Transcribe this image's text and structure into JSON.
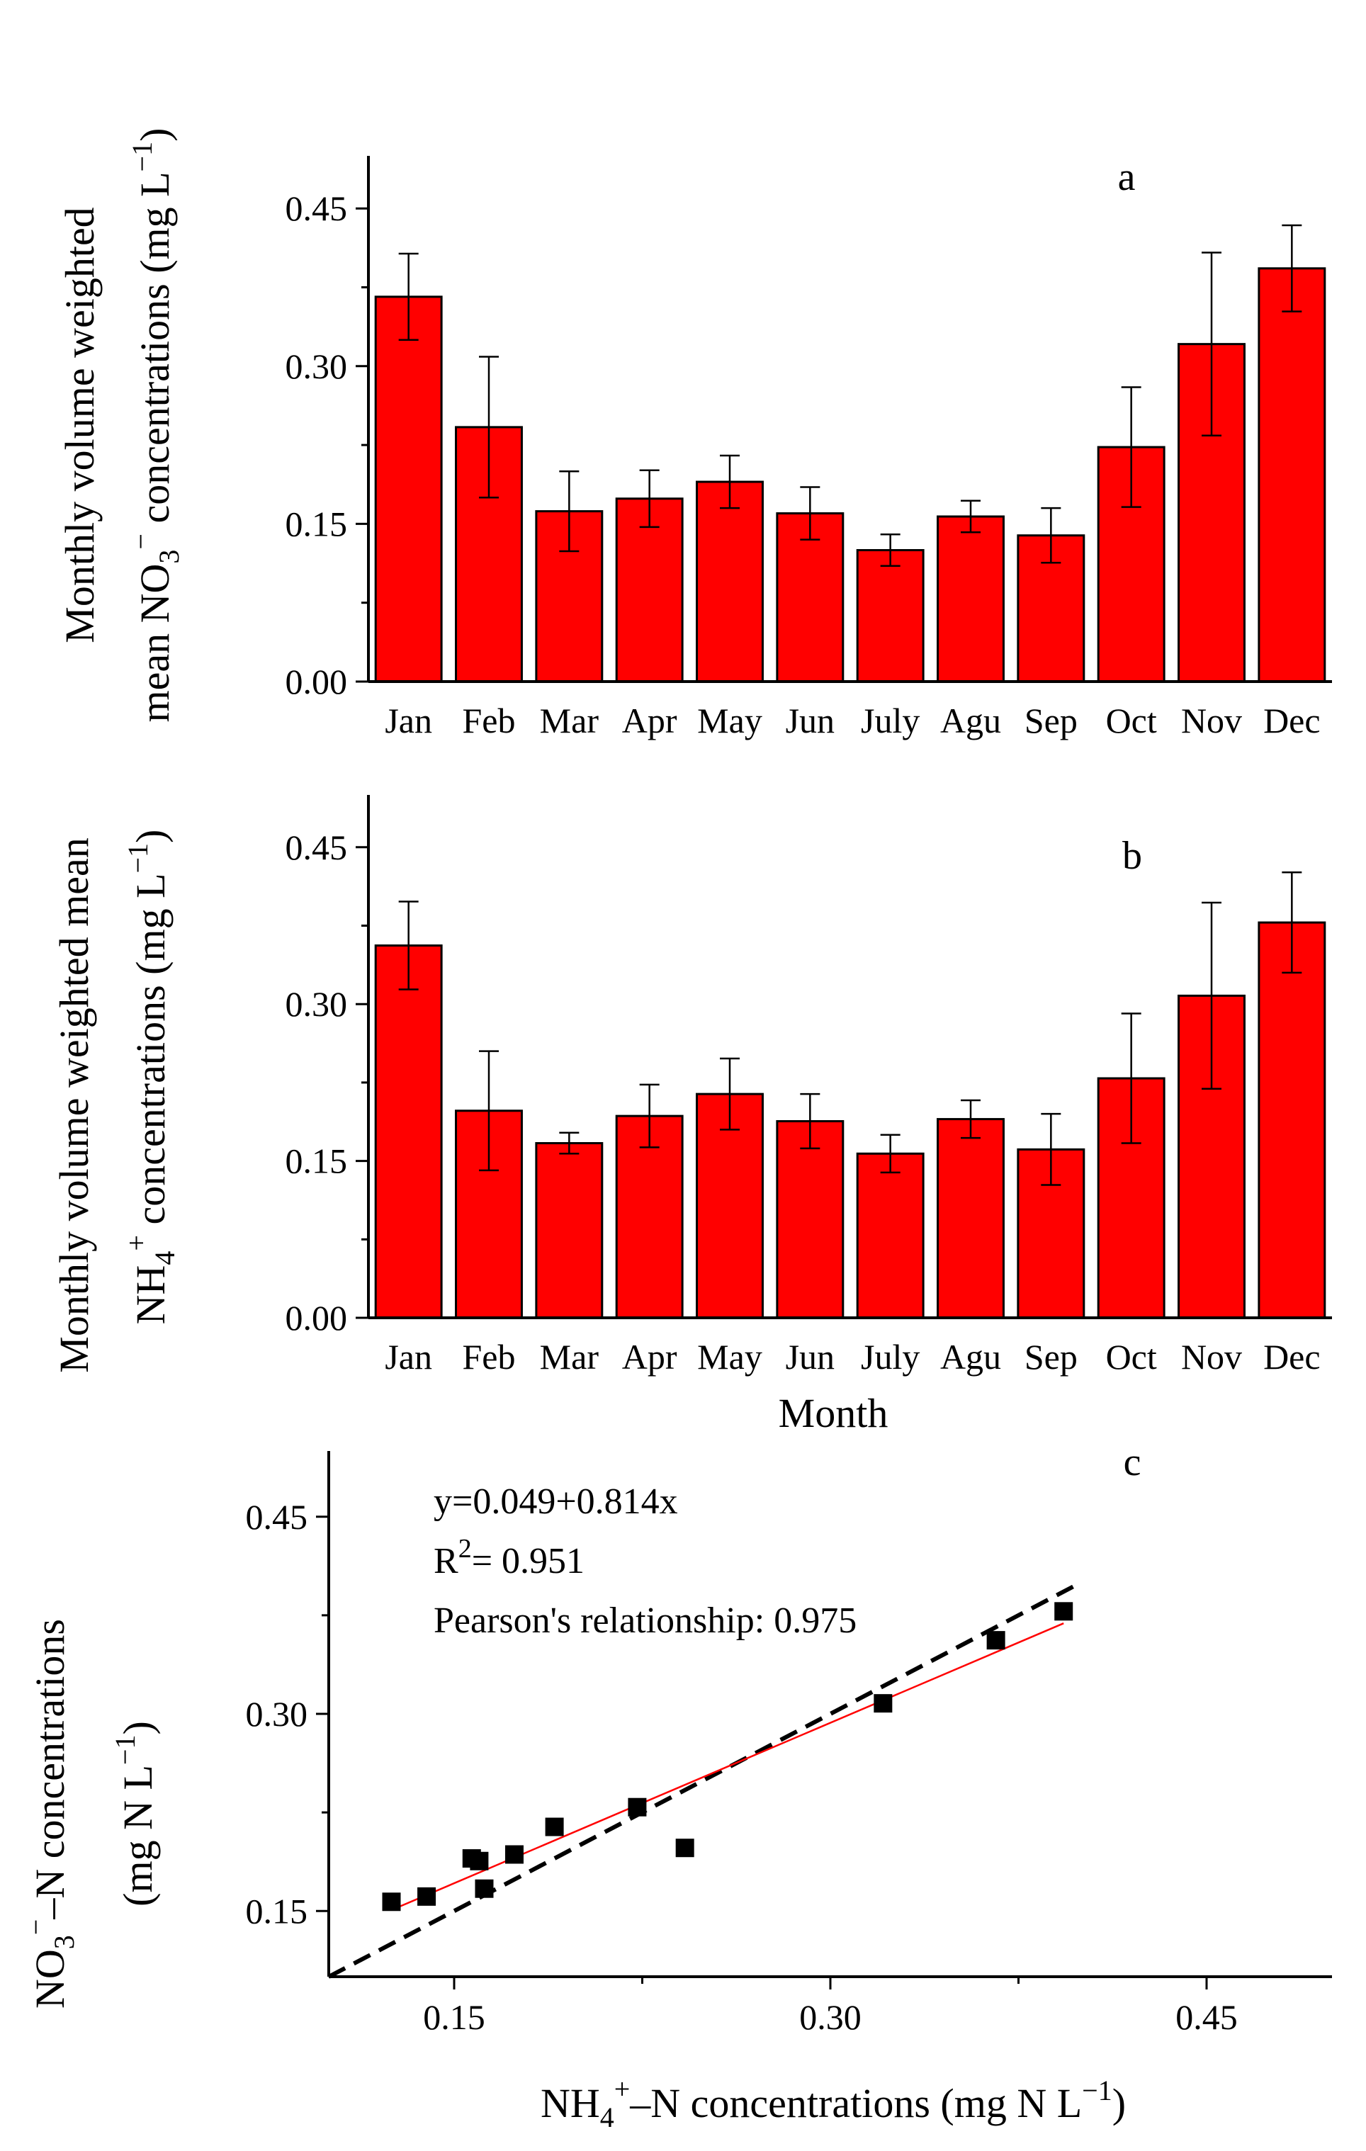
{
  "chart_data": [
    {
      "type": "bar",
      "panel_label": "a",
      "categories": [
        "Jan",
        "Feb",
        "Mar",
        "Apr",
        "May",
        "Jun",
        "July",
        "Agu",
        "Sep",
        "Oct",
        "Nov",
        "Dec"
      ],
      "values": [
        0.366,
        0.242,
        0.162,
        0.174,
        0.19,
        0.16,
        0.125,
        0.157,
        0.139,
        0.223,
        0.321,
        0.393
      ],
      "errors": [
        0.041,
        0.067,
        0.038,
        0.027,
        0.025,
        0.025,
        0.015,
        0.015,
        0.026,
        0.057,
        0.087,
        0.041
      ],
      "ylabel_line1": "Monthly volume weighted",
      "ylabel_line2_pre": "mean NO",
      "ylabel_line2_sub": "3",
      "ylabel_line2_sup": "−",
      "ylabel_line2_post": " concentrations (mg L",
      "ylabel_unit_sup": "−1",
      "ylabel_unit_close": ")",
      "yticks": [
        "0.00",
        "0.15",
        "0.30",
        "0.45"
      ],
      "ylim": [
        0,
        0.5
      ],
      "bar_color": "#ff0000"
    },
    {
      "type": "bar",
      "panel_label": "b",
      "categories": [
        "Jan",
        "Feb",
        "Mar",
        "Apr",
        "May",
        "Jun",
        "July",
        "Agu",
        "Sep",
        "Oct",
        "Nov",
        "Dec"
      ],
      "values": [
        0.356,
        0.198,
        0.167,
        0.193,
        0.214,
        0.188,
        0.157,
        0.19,
        0.161,
        0.229,
        0.308,
        0.378
      ],
      "errors": [
        0.042,
        0.057,
        0.01,
        0.03,
        0.034,
        0.026,
        0.018,
        0.018,
        0.034,
        0.062,
        0.089,
        0.048
      ],
      "xlabel": "Month",
      "ylabel_line1": "Monthly volume weighted mean",
      "ylabel_line2_pre": "NH",
      "ylabel_line2_sub": "4",
      "ylabel_line2_sup": "+",
      "ylabel_line2_post": " concentrations (mg L",
      "ylabel_unit_sup": "−1",
      "ylabel_unit_close": ")",
      "yticks": [
        "0.00",
        "0.15",
        "0.30",
        "0.45"
      ],
      "ylim": [
        0,
        0.5
      ],
      "bar_color": "#ff0000"
    },
    {
      "type": "scatter",
      "panel_label": "c",
      "points": [
        {
          "x": 0.125,
          "y": 0.157
        },
        {
          "x": 0.139,
          "y": 0.161
        },
        {
          "x": 0.157,
          "y": 0.19
        },
        {
          "x": 0.16,
          "y": 0.188
        },
        {
          "x": 0.162,
          "y": 0.167
        },
        {
          "x": 0.174,
          "y": 0.193
        },
        {
          "x": 0.19,
          "y": 0.214
        },
        {
          "x": 0.223,
          "y": 0.229
        },
        {
          "x": 0.242,
          "y": 0.198
        },
        {
          "x": 0.321,
          "y": 0.308
        },
        {
          "x": 0.366,
          "y": 0.356
        },
        {
          "x": 0.393,
          "y": 0.378
        }
      ],
      "fit": {
        "intercept": 0.049,
        "slope": 0.814,
        "x_range": [
          0.125,
          0.393
        ],
        "color": "#ff0000"
      },
      "identity_line": {
        "x_range": [
          0.1,
          0.4
        ],
        "style": "dashed"
      },
      "annotations": {
        "equation": "y=0.049+0.814x",
        "r2_pre": "R",
        "r2_sup": "2",
        "r2_post": "= 0.951",
        "pearson": "Pearson's relationship: 0.975"
      },
      "xlabel_pre": "NH",
      "xlabel_sub": "4",
      "xlabel_sup": "+",
      "xlabel_post": "–N concentrations (mg N L",
      "xlabel_unit_sup": "−1",
      "xlabel_close": ")",
      "ylabel_line1_pre": "NO",
      "ylabel_line1_sub": "3",
      "ylabel_line1_sup": "−",
      "ylabel_line1_post": "–N concentrations",
      "ylabel_line2_pre": "(mg N L",
      "ylabel_line2_sup": "−1",
      "ylabel_line2_close": ")",
      "xticks": [
        "0.15",
        "0.30",
        "0.45"
      ],
      "yticks": [
        "0.15",
        "0.30",
        "0.45"
      ],
      "xlim": [
        0.1,
        0.5
      ],
      "ylim": [
        0.1,
        0.5
      ]
    }
  ]
}
